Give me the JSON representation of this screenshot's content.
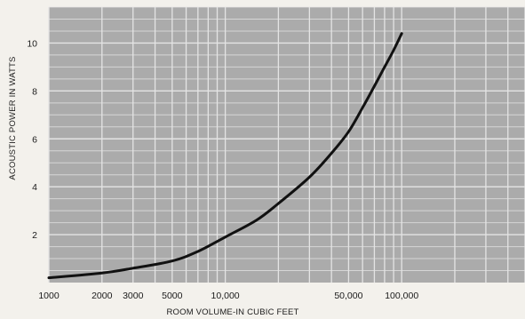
{
  "chart_data": {
    "type": "line",
    "title": "",
    "xlabel": "ROOM VOLUME-IN CUBIC FEET",
    "ylabel": "ACOUSTIC POWER IN WATTS",
    "x_scale": "log",
    "xlim": [
      1000,
      500000
    ],
    "ylim": [
      0,
      11.5
    ],
    "x_ticks": [
      {
        "value": 1000,
        "label": "1000"
      },
      {
        "value": 2000,
        "label": "2000"
      },
      {
        "value": 3000,
        "label": "3000"
      },
      {
        "value": 5000,
        "label": "5000"
      },
      {
        "value": 10000,
        "label": "10,000"
      },
      {
        "value": 50000,
        "label": "50,000"
      },
      {
        "value": 100000,
        "label": "100,000"
      }
    ],
    "y_ticks": [
      {
        "value": 2,
        "label": "2"
      },
      {
        "value": 4,
        "label": "4"
      },
      {
        "value": 6,
        "label": "6"
      },
      {
        "value": 8,
        "label": "8"
      },
      {
        "value": 10,
        "label": "10"
      }
    ],
    "grid": true,
    "series": [
      {
        "x": [
          1000,
          2000,
          3000,
          5000,
          7000,
          10000,
          15000,
          20000,
          30000,
          40000,
          50000,
          60000,
          70000,
          80000,
          90000,
          100000
        ],
        "y": [
          0.2,
          0.4,
          0.6,
          0.9,
          1.3,
          1.9,
          2.6,
          3.3,
          4.4,
          5.4,
          6.3,
          7.3,
          8.2,
          9.0,
          9.7,
          10.4
        ]
      }
    ],
    "colors": {
      "plot_background": "#ababab",
      "grid": "#e4e4e4",
      "curve": "#111111",
      "page": "#f3f1ec"
    }
  }
}
